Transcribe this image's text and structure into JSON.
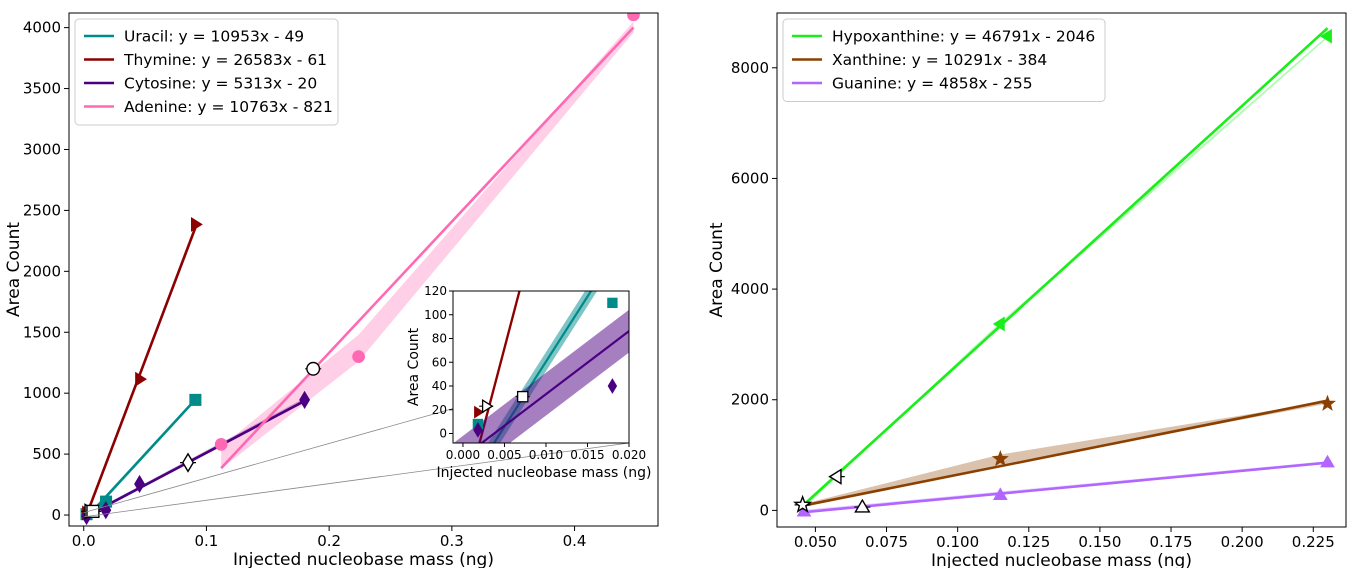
{
  "chart_data": [
    {
      "type": "line",
      "xlabel": "Injected nucleobase mass (ng)",
      "ylabel": "Area Count",
      "xlim": [
        -0.012,
        0.468
      ],
      "ylim": [
        -90,
        4120
      ],
      "xticks": [
        0.0,
        0.1,
        0.2,
        0.3,
        0.4
      ],
      "xtick_labels": [
        "0.0",
        "0.1",
        "0.2",
        "0.3",
        "0.4"
      ],
      "yticks": [
        0,
        500,
        1000,
        1500,
        2000,
        2500,
        3000,
        3500,
        4000
      ],
      "ytick_labels": [
        "0",
        "500",
        "1000",
        "1500",
        "2000",
        "2500",
        "3000",
        "3500",
        "4000"
      ],
      "grid": false,
      "legend_position": "top-left",
      "series": [
        {
          "name": "Uracil: y = 10953x - 49",
          "color": "#008b8b",
          "marker": "square",
          "x": [
            0.0023,
            0.0182,
            0.091
          ],
          "y": [
            7,
            110,
            945
          ],
          "fit_x": [
            0.004,
            0.09
          ],
          "band": {
            "x": [
              0.004,
              0.09
            ],
            "upper": [
              15,
              950
            ],
            "lower": [
              -15,
              930
            ]
          }
        },
        {
          "name": "Thymine: y = 26583x - 61",
          "color": "#8b0000",
          "marker": "triangle-right",
          "x": [
            0.0023,
            0.0455,
            0.091
          ],
          "y": [
            18,
            1115,
            2385
          ],
          "fit_x": [
            0.0023,
            0.091
          ],
          "band": {
            "x": [
              0.0023,
              0.091
            ],
            "upper": [
              10,
              2395
            ],
            "lower": [
              -10,
              2370
            ]
          }
        },
        {
          "name": "Cytosine: y = 5313x - 20",
          "color": "#4b0082",
          "marker": "diamond",
          "x": [
            0.0023,
            0.018,
            0.0455,
            0.18
          ],
          "y": [
            -8,
            40,
            255,
            945
          ],
          "fit_x": [
            0.0023,
            0.18
          ],
          "band": {
            "x": [
              0.0023,
              0.18
            ],
            "upper": [
              5,
              960
            ],
            "lower": [
              -20,
              930
            ]
          }
        },
        {
          "name": "Adenine: y = 10763x - 821",
          "color": "#ff69b4",
          "marker": "circle",
          "x": [
            0.112,
            0.224,
            0.448
          ],
          "y": [
            580,
            1300,
            4105
          ],
          "fit_x": [
            0.112,
            0.448
          ],
          "band": {
            "x": [
              0.112,
              0.224,
              0.448
            ],
            "upper": [
              560,
              1480,
              4050
            ],
            "lower": [
              380,
              1260,
              3960
            ]
          }
        }
      ],
      "white_markers": [
        {
          "marker": "triangle-right",
          "x": 0.0045,
          "y": 30
        },
        {
          "marker": "square",
          "x": 0.0075,
          "y": 30
        },
        {
          "marker": "diamond",
          "x": 0.085,
          "y": 430
        },
        {
          "marker": "circle",
          "x": 0.187,
          "y": 1200
        }
      ],
      "inset": {
        "xlabel": "Injected nucleobase mass (ng)",
        "ylabel": "Area Count",
        "xlim": [
          -0.0012,
          0.02
        ],
        "ylim": [
          -8,
          120
        ],
        "xticks": [
          0.0,
          0.005,
          0.01,
          0.015,
          0.02
        ],
        "xtick_labels": [
          "0.000",
          "0.005",
          "0.010",
          "0.015",
          "0.020"
        ],
        "yticks": [
          0,
          20,
          40,
          60,
          80,
          100,
          120
        ],
        "ytick_labels": [
          "0",
          "20",
          "40",
          "60",
          "80",
          "100",
          "120"
        ],
        "markers": [
          {
            "series": 0,
            "marker": "square",
            "x": 0.0018,
            "y": 8
          },
          {
            "series": 0,
            "marker": "square",
            "x": 0.018,
            "y": 110
          },
          {
            "series": 1,
            "marker": "triangle-right",
            "x": 0.0018,
            "y": 18
          },
          {
            "series": 2,
            "marker": "diamond",
            "x": 0.0018,
            "y": 3
          },
          {
            "series": 2,
            "marker": "diamond",
            "x": 0.018,
            "y": 40
          }
        ],
        "white_markers": [
          {
            "marker": "triangle-right",
            "x": 0.0028,
            "y": 23
          },
          {
            "marker": "square",
            "x": 0.0072,
            "y": 31
          }
        ]
      }
    },
    {
      "type": "line",
      "xlabel": "Injected nucleobase mass (ng)",
      "ylabel": "Area Count",
      "xlim": [
        0.0365,
        0.2365
      ],
      "ylim": [
        -300,
        8990
      ],
      "xticks": [
        0.05,
        0.075,
        0.1,
        0.125,
        0.15,
        0.175,
        0.2,
        0.225
      ],
      "xtick_labels": [
        "0.050",
        "0.075",
        "0.100",
        "0.125",
        "0.150",
        "0.175",
        "0.200",
        "0.225"
      ],
      "yticks": [
        0,
        2000,
        4000,
        6000,
        8000
      ],
      "ytick_labels": [
        "0",
        "2000",
        "4000",
        "6000",
        "8000"
      ],
      "grid": false,
      "legend_position": "top-left",
      "series": [
        {
          "name": "Hypoxanthine: y = 46791x - 2046",
          "color": "#1aee1a",
          "marker": "triangle-left",
          "x": [
            0.115,
            0.23
          ],
          "y": [
            3370,
            8570
          ],
          "fit_x": [
            0.046,
            0.23
          ],
          "band": {
            "x": [
              0.046,
              0.115,
              0.23
            ],
            "upper": [
              100,
              3400,
              8580
            ],
            "lower": [
              50,
              3330,
              8540
            ]
          }
        },
        {
          "name": "Xanthine: y = 10291x - 384",
          "color": "#8b4000",
          "marker": "star",
          "x": [
            0.115,
            0.23
          ],
          "y": [
            930,
            1930
          ],
          "fit_x": [
            0.046,
            0.23
          ],
          "band": {
            "x": [
              0.046,
              0.115,
              0.23
            ],
            "upper": [
              120,
              1010,
              1970
            ],
            "lower": [
              70,
              830,
              1930
            ]
          }
        },
        {
          "name": "Guanine: y = 4858x - 255",
          "color": "#b266ff",
          "marker": "triangle-up",
          "x": [
            0.046,
            0.115,
            0.23
          ],
          "y": [
            -20,
            280,
            870
          ],
          "fit_x": [
            0.046,
            0.23
          ],
          "band": {
            "x": [
              0.046,
              0.23
            ],
            "upper": [
              10,
              890
            ],
            "lower": [
              -40,
              850
            ]
          }
        }
      ],
      "white_markers": [
        {
          "marker": "triangle-left",
          "x": 0.0575,
          "y": 610
        },
        {
          "marker": "star",
          "x": 0.0455,
          "y": 100
        },
        {
          "marker": "triangle-up",
          "x": 0.0665,
          "y": 60
        }
      ]
    }
  ]
}
